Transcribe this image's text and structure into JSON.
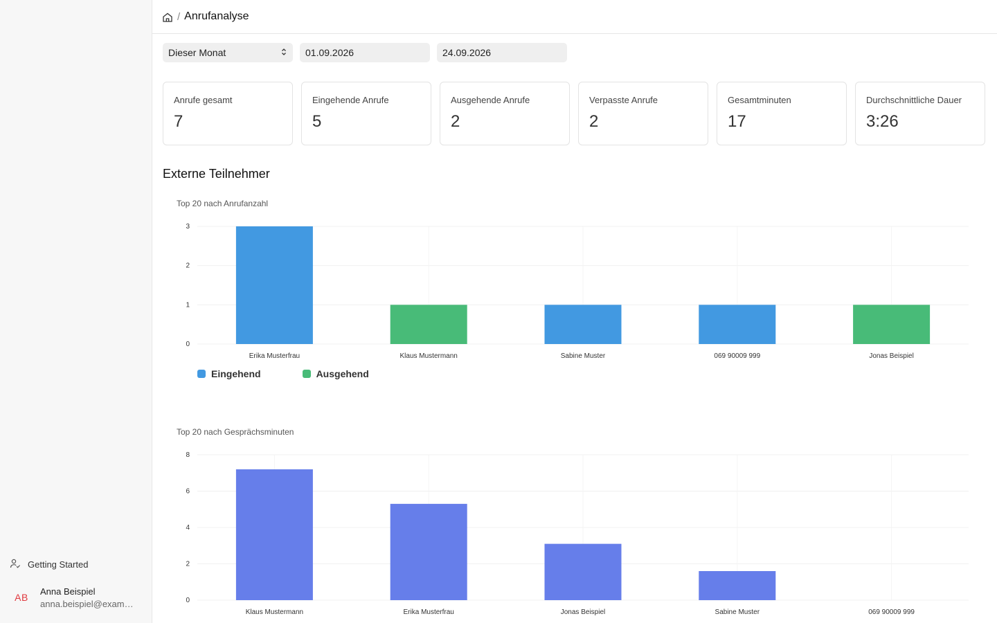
{
  "breadcrumb": {
    "separator": "/",
    "title": "Anrufanalyse"
  },
  "filters": {
    "period": "Dieser Monat",
    "date_from": "01.09.2026",
    "date_to": "24.09.2026"
  },
  "stats": [
    {
      "label": "Anrufe gesamt",
      "value": "7"
    },
    {
      "label": "Eingehende Anrufe",
      "value": "5"
    },
    {
      "label": "Ausgehende Anrufe",
      "value": "2"
    },
    {
      "label": "Verpasste Anrufe",
      "value": "2"
    },
    {
      "label": "Gesamtminuten",
      "value": "17"
    },
    {
      "label": "Durchschnittliche Dauer",
      "value": "3:26"
    }
  ],
  "section_title": "Externe Teilnehmer",
  "sidebar": {
    "getting_started": "Getting Started",
    "user": {
      "initials": "AB",
      "name": "Anna Beispiel",
      "email": "anna.beispiel@example.com"
    }
  },
  "colors": {
    "incoming": "#4299e1",
    "outgoing": "#48bb78",
    "minutes": "#667eea"
  },
  "chart_data": [
    {
      "type": "bar",
      "subtitle": "Top 20 nach Anrufanzahl",
      "categories": [
        "Erika Musterfrau",
        "Klaus Mustermann",
        "Sabine Muster",
        "069 90009 999",
        "Jonas Beispiel"
      ],
      "values": [
        3,
        1,
        1,
        1,
        1
      ],
      "bar_series": [
        "Eingehend",
        "Ausgehend",
        "Eingehend",
        "Eingehend",
        "Ausgehend"
      ],
      "legend": [
        "Eingehend",
        "Ausgehend"
      ],
      "yticks": [
        0,
        1,
        2,
        3
      ],
      "ylim": [
        0,
        3
      ]
    },
    {
      "type": "bar",
      "subtitle": "Top 20 nach Gesprächsminuten",
      "categories": [
        "Klaus Mustermann",
        "Erika Musterfrau",
        "Jonas Beispiel",
        "Sabine Muster",
        "069 90009 999"
      ],
      "values": [
        7.2,
        5.3,
        3.1,
        1.6,
        0
      ],
      "yticks": [
        0,
        2,
        4,
        6,
        8
      ],
      "ylim": [
        0,
        8
      ]
    }
  ]
}
